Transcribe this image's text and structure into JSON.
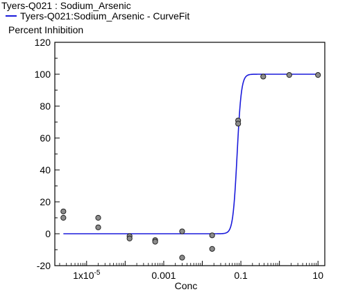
{
  "chart_data": {
    "type": "scatter",
    "title": "Tyers-Q021  : Sodium_Arsenic",
    "ylabel": "Percent  Inhibition",
    "xlabel": "Conc",
    "xscale": "log",
    "xlim": [
      1.5e-06,
      15
    ],
    "ylim": [
      -20,
      120
    ],
    "yticks": [
      -20,
      0,
      20,
      40,
      60,
      80,
      100,
      120
    ],
    "xticks": [
      {
        "value": 1e-05,
        "label": "1x10",
        "exp": "-5"
      },
      {
        "value": 0.001,
        "label": "0.001",
        "exp": ""
      },
      {
        "value": 0.1,
        "label": "0.1",
        "exp": ""
      },
      {
        "value": 10,
        "label": "10",
        "exp": ""
      }
    ],
    "grid": false,
    "legend_position": "top-left",
    "series": [
      {
        "name": "Tyers-Q021:Sodium_Arsenic - CurveFit",
        "kind": "line",
        "color": "#1a1adb",
        "fit": {
          "bottom": 0,
          "top": 100,
          "ec50": 0.08,
          "hill": 8
        },
        "x_range": [
          2.5e-06,
          10
        ]
      },
      {
        "name": "",
        "kind": "points",
        "color": "#8c8c8c",
        "x": [
          2.5e-06,
          2.5e-06,
          2e-05,
          2e-05,
          0.00013,
          0.00013,
          0.0006,
          0.0006,
          0.003,
          0.003,
          0.018,
          0.018,
          0.085,
          0.085,
          0.38,
          1.8,
          10
        ],
        "y": [
          14,
          10,
          10,
          4,
          -1.5,
          -3,
          -4,
          -5,
          1.5,
          -15,
          -1,
          -9.5,
          71,
          69,
          98.5,
          99.5,
          99.5
        ]
      }
    ]
  }
}
